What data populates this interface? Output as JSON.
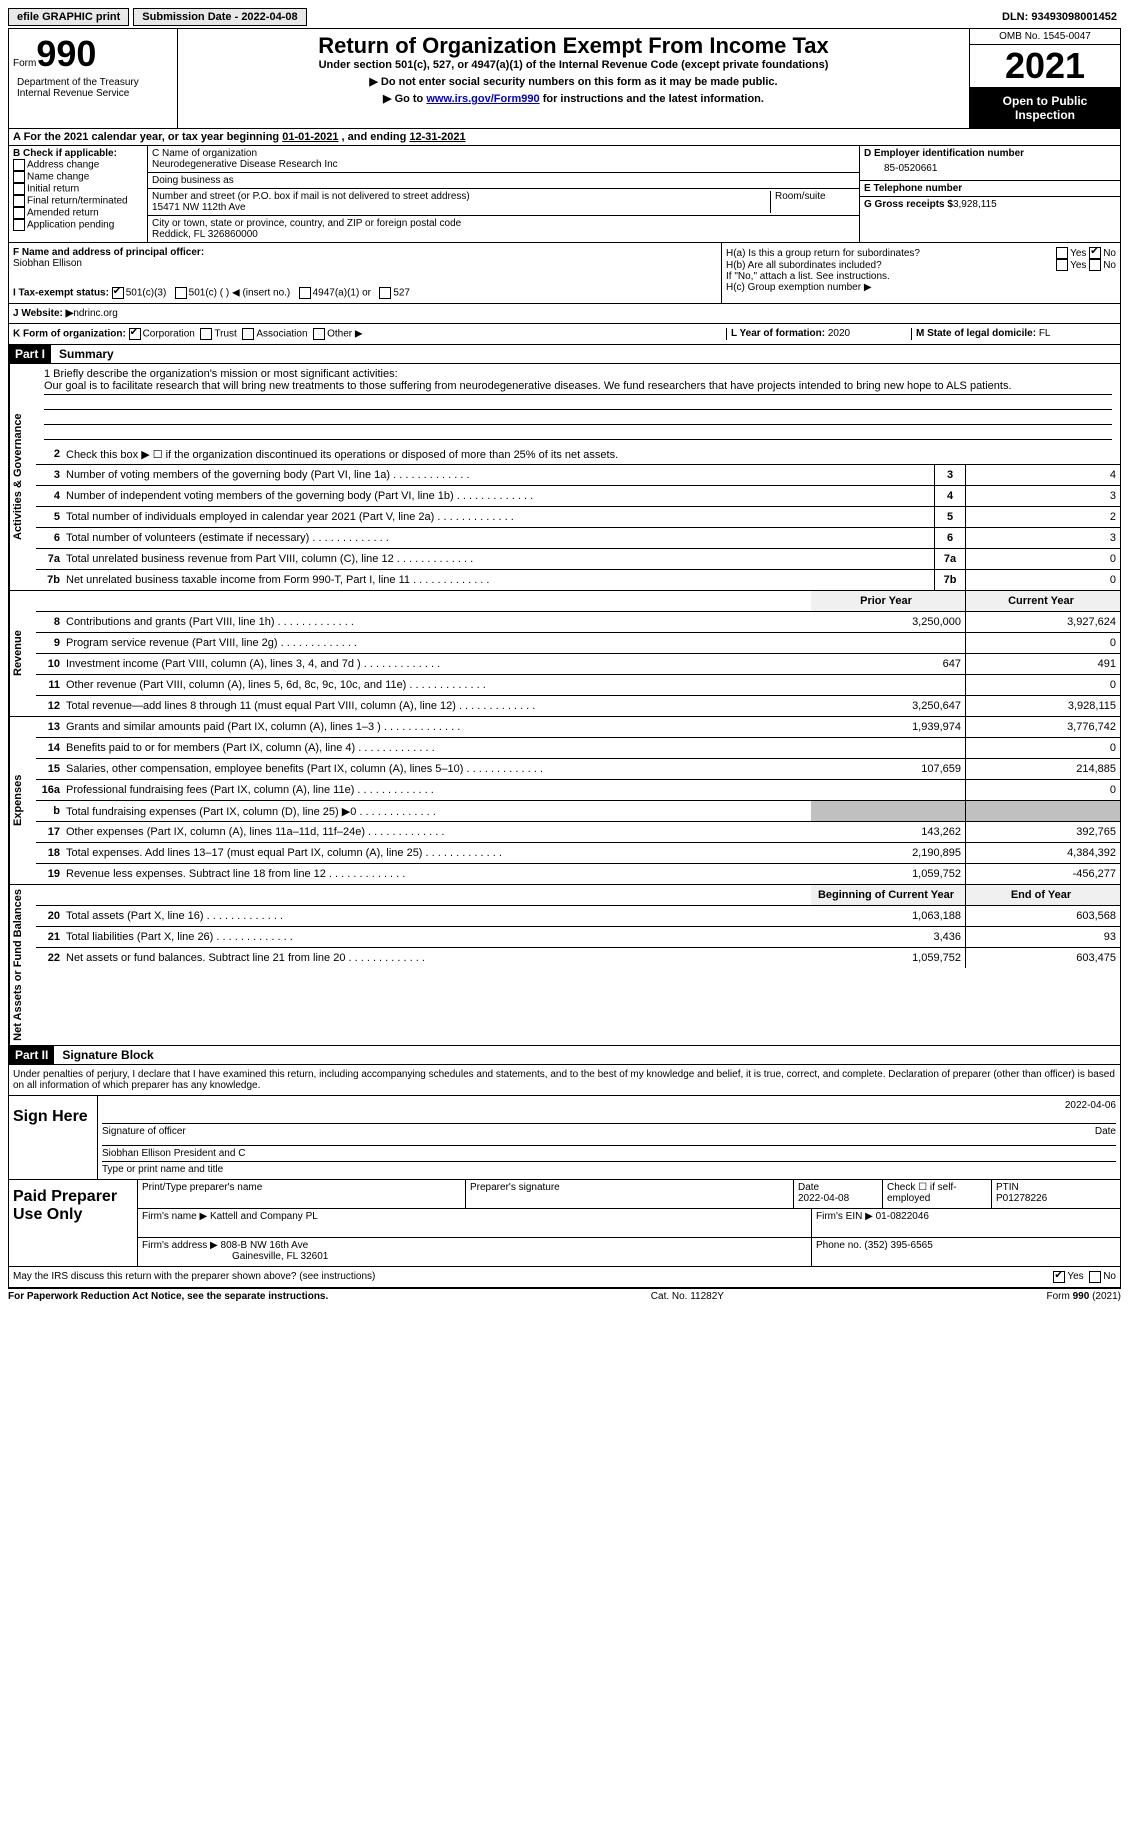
{
  "topbar": {
    "efile_label": "efile GRAPHIC print",
    "submission_label": "Submission Date - 2022-04-08",
    "dln_label": "DLN: 93493098001452"
  },
  "header": {
    "form_label": "Form",
    "form_number": "990",
    "title": "Return of Organization Exempt From Income Tax",
    "subtitle": "Under section 501(c), 527, or 4947(a)(1) of the Internal Revenue Code (except private foundations)",
    "ssn_note": "▶ Do not enter social security numbers on this form as it may be made public.",
    "goto": "▶ Go to ",
    "goto_link": "www.irs.gov/Form990",
    "goto_rest": " for instructions and the latest information.",
    "omb": "OMB No. 1545-0047",
    "year": "2021",
    "open": "Open to Public Inspection",
    "dept": "Department of the Treasury\nInternal Revenue Service"
  },
  "period": {
    "label_a": "A For the 2021 calendar year, or tax year beginning ",
    "begin": "01-01-2021",
    "mid": " , and ending ",
    "end": "12-31-2021"
  },
  "box_b": {
    "title": "B Check if applicable:",
    "opts": [
      "Address change",
      "Name change",
      "Initial return",
      "Final return/terminated",
      "Amended return",
      "Application pending"
    ]
  },
  "box_c": {
    "name_label": "C Name of organization",
    "name": "Neurodegenerative Disease Research Inc",
    "dba_label": "Doing business as",
    "dba": "",
    "street_label": "Number and street (or P.O. box if mail is not delivered to street address)",
    "room_label": "Room/suite",
    "street": "15471 NW 112th Ave",
    "city_label": "City or town, state or province, country, and ZIP or foreign postal code",
    "city": "Reddick, FL  326860000"
  },
  "box_d": {
    "label": "D Employer identification number",
    "value": "85-0520661"
  },
  "box_e": {
    "label": "E Telephone number",
    "value": ""
  },
  "box_g": {
    "label": "G Gross receipts $",
    "value": "3,928,115"
  },
  "box_f": {
    "label": "F  Name and address of principal officer:",
    "name": "Siobhan Ellison"
  },
  "box_h": {
    "ha_label": "H(a)  Is this a group return for subordinates?",
    "hb_label": "H(b)  Are all subordinates included?",
    "hb_note": "If \"No,\" attach a list. See instructions.",
    "hc_label": "H(c)  Group exemption number ▶",
    "yes": "Yes",
    "no": "No"
  },
  "box_i": {
    "label": "I   Tax-exempt status:",
    "opts": [
      "501(c)(3)",
      "501(c) (  ) ◀ (insert no.)",
      "4947(a)(1) or",
      "527"
    ]
  },
  "box_j": {
    "label": "J   Website: ▶",
    "value": " ndrinc.org"
  },
  "box_k": {
    "label": "K Form of organization:",
    "opts": [
      "Corporation",
      "Trust",
      "Association",
      "Other ▶"
    ]
  },
  "box_l": {
    "label": "L Year of formation: ",
    "value": "2020"
  },
  "box_m": {
    "label": "M State of legal domicile: ",
    "value": "FL"
  },
  "part1": {
    "header": "Part I",
    "title": "Summary",
    "q1_label": "1   Briefly describe the organization's mission or most significant activities:",
    "mission": "Our goal is to facilitate research that will bring new treatments to those suffering from neurodegenerative diseases. We fund researchers that have projects intended to bring new hope to ALS patients.",
    "q2": "Check this box ▶ ☐  if the organization discontinued its operations or disposed of more than 25% of its net assets.",
    "vtab_ag": "Activities & Governance",
    "vtab_rev": "Revenue",
    "vtab_exp": "Expenses",
    "vtab_na": "Net Assets or Fund Balances",
    "prior_header": "Prior Year",
    "current_header": "Current Year",
    "boy_header": "Beginning of Current Year",
    "eoy_header": "End of Year",
    "lines_ag": [
      {
        "n": "3",
        "t": "Number of voting members of the governing body (Part VI, line 1a)",
        "c": "3",
        "v": "4"
      },
      {
        "n": "4",
        "t": "Number of independent voting members of the governing body (Part VI, line 1b)",
        "c": "4",
        "v": "3"
      },
      {
        "n": "5",
        "t": "Total number of individuals employed in calendar year 2021 (Part V, line 2a)",
        "c": "5",
        "v": "2"
      },
      {
        "n": "6",
        "t": "Total number of volunteers (estimate if necessary)",
        "c": "6",
        "v": "3"
      },
      {
        "n": "7a",
        "t": "Total unrelated business revenue from Part VIII, column (C), line 12",
        "c": "7a",
        "v": "0"
      },
      {
        "n": "7b",
        "t": "Net unrelated business taxable income from Form 990-T, Part I, line 11",
        "c": "7b",
        "v": "0"
      }
    ],
    "lines_rev": [
      {
        "n": "8",
        "t": "Contributions and grants (Part VIII, line 1h)",
        "p": "3,250,000",
        "c": "3,927,624"
      },
      {
        "n": "9",
        "t": "Program service revenue (Part VIII, line 2g)",
        "p": "",
        "c": "0"
      },
      {
        "n": "10",
        "t": "Investment income (Part VIII, column (A), lines 3, 4, and 7d )",
        "p": "647",
        "c": "491"
      },
      {
        "n": "11",
        "t": "Other revenue (Part VIII, column (A), lines 5, 6d, 8c, 9c, 10c, and 11e)",
        "p": "",
        "c": "0"
      },
      {
        "n": "12",
        "t": "Total revenue—add lines 8 through 11 (must equal Part VIII, column (A), line 12)",
        "p": "3,250,647",
        "c": "3,928,115"
      }
    ],
    "lines_exp": [
      {
        "n": "13",
        "t": "Grants and similar amounts paid (Part IX, column (A), lines 1–3 )",
        "p": "1,939,974",
        "c": "3,776,742"
      },
      {
        "n": "14",
        "t": "Benefits paid to or for members (Part IX, column (A), line 4)",
        "p": "",
        "c": "0"
      },
      {
        "n": "15",
        "t": "Salaries, other compensation, employee benefits (Part IX, column (A), lines 5–10)",
        "p": "107,659",
        "c": "214,885"
      },
      {
        "n": "16a",
        "t": "Professional fundraising fees (Part IX, column (A), line 11e)",
        "p": "",
        "c": "0"
      },
      {
        "n": "b",
        "t": "Total fundraising expenses (Part IX, column (D), line 25) ▶0",
        "p": "shaded",
        "c": "shaded"
      },
      {
        "n": "17",
        "t": "Other expenses (Part IX, column (A), lines 11a–11d, 11f–24e)",
        "p": "143,262",
        "c": "392,765"
      },
      {
        "n": "18",
        "t": "Total expenses. Add lines 13–17 (must equal Part IX, column (A), line 25)",
        "p": "2,190,895",
        "c": "4,384,392"
      },
      {
        "n": "19",
        "t": "Revenue less expenses. Subtract line 18 from line 12",
        "p": "1,059,752",
        "c": "-456,277"
      }
    ],
    "lines_na": [
      {
        "n": "20",
        "t": "Total assets (Part X, line 16)",
        "p": "1,063,188",
        "c": "603,568"
      },
      {
        "n": "21",
        "t": "Total liabilities (Part X, line 26)",
        "p": "3,436",
        "c": "93"
      },
      {
        "n": "22",
        "t": "Net assets or fund balances. Subtract line 21 from line 20",
        "p": "1,059,752",
        "c": "603,475"
      }
    ]
  },
  "part2": {
    "header": "Part II",
    "title": "Signature Block",
    "penalty": "Under penalties of perjury, I declare that I have examined this return, including accompanying schedules and statements, and to the best of my knowledge and belief, it is true, correct, and complete. Declaration of preparer (other than officer) is based on all information of which preparer has any knowledge.",
    "sign_here": "Sign Here",
    "sig_officer": "Signature of officer",
    "sig_date": "2022-04-06",
    "date_label": "Date",
    "officer_name": "Siobhan Ellison  President and C",
    "type_name": "Type or print name and title"
  },
  "paid": {
    "label": "Paid Preparer Use Only",
    "print_name": "Print/Type preparer's name",
    "prep_sig": "Preparer's signature",
    "date_label": "Date",
    "date": "2022-04-08",
    "check_label": "Check ☐ if self-employed",
    "ptin_label": "PTIN",
    "ptin": "P01278226",
    "firm_name_label": "Firm's name    ▶",
    "firm_name": "Kattell and Company PL",
    "firm_ein_label": "Firm's EIN ▶",
    "firm_ein": "01-0822046",
    "firm_addr_label": "Firm's address ▶",
    "firm_addr1": "808-B NW 16th Ave",
    "firm_addr2": "Gainesville, FL  32601",
    "phone_label": "Phone no.",
    "phone": "(352) 395-6565"
  },
  "bottom": {
    "discuss": "May the IRS discuss this return with the preparer shown above? (see instructions)",
    "yes": "Yes",
    "no": "No",
    "pra": "For Paperwork Reduction Act Notice, see the separate instructions.",
    "cat": "Cat. No. 11282Y",
    "form": "Form 990 (2021)"
  }
}
